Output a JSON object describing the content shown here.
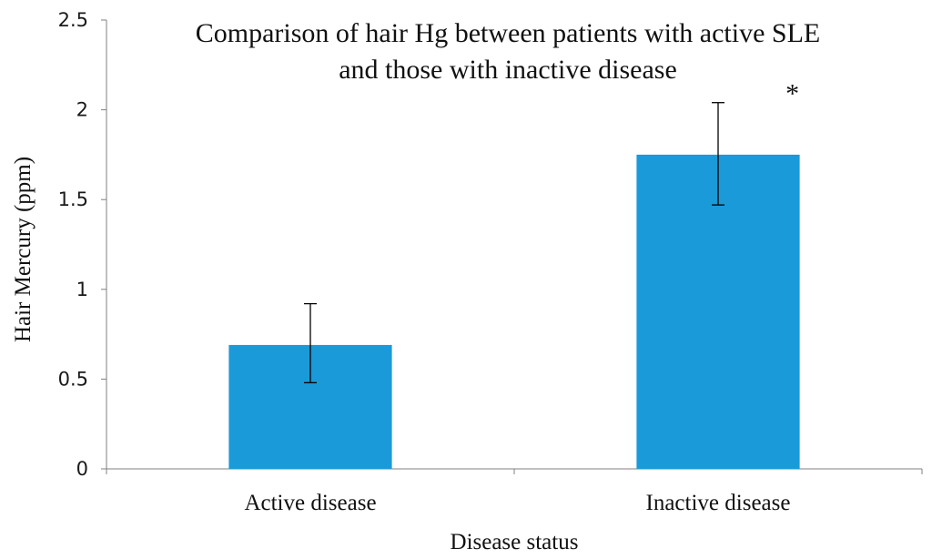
{
  "chart_data": {
    "type": "bar",
    "title_lines": [
      "Comparison of hair Hg between patients with active SLE",
      "and those with inactive disease"
    ],
    "xlabel": "Disease status",
    "ylabel": "Hair Mercury (ppm)",
    "categories": [
      "Active disease",
      "Inactive disease"
    ],
    "series": [
      {
        "values": [
          0.69,
          1.75
        ],
        "error_low": [
          0.48,
          1.47
        ],
        "error_high": [
          0.92,
          2.04
        ],
        "color": "#1a9ad8"
      }
    ],
    "ylim": [
      0,
      2.5
    ],
    "yticks": [
      "0",
      "0.5",
      "1",
      "1.5",
      "2",
      "2.5"
    ],
    "annotations": [
      {
        "category": "Inactive disease",
        "text": "*"
      }
    ],
    "grid": false,
    "legend": "none"
  }
}
